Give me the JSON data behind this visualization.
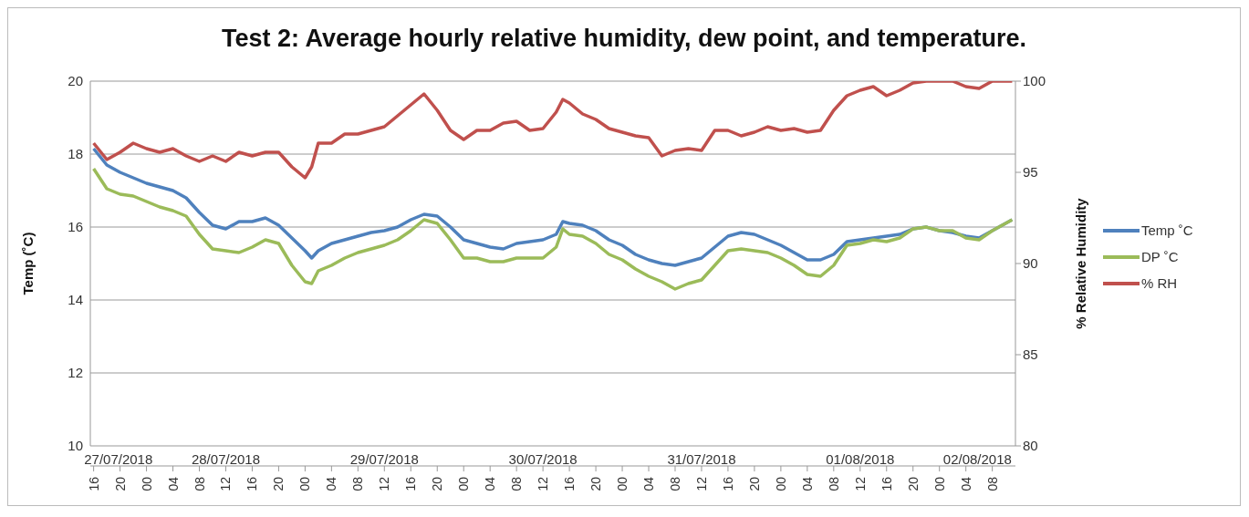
{
  "chart_data": {
    "type": "line",
    "title": "Test 2: Average hourly relative humidity, dew point, and temperature.",
    "ylabel": "Temp (˚C)",
    "y2label": "% Relative Humidity",
    "x": [
      "2018-07-27T16:00",
      "2018-07-27T18:00",
      "2018-07-27T20:00",
      "2018-07-27T22:00",
      "2018-07-28T00:00",
      "2018-07-28T02:00",
      "2018-07-28T04:00",
      "2018-07-28T06:00",
      "2018-07-28T08:00",
      "2018-07-28T10:00",
      "2018-07-28T12:00",
      "2018-07-28T14:00",
      "2018-07-28T16:00",
      "2018-07-28T18:00",
      "2018-07-28T20:00",
      "2018-07-28T22:00",
      "2018-07-29T00:00",
      "2018-07-29T01:00",
      "2018-07-29T02:00",
      "2018-07-29T04:00",
      "2018-07-29T06:00",
      "2018-07-29T08:00",
      "2018-07-29T10:00",
      "2018-07-29T12:00",
      "2018-07-29T14:00",
      "2018-07-29T16:00",
      "2018-07-29T18:00",
      "2018-07-29T20:00",
      "2018-07-29T22:00",
      "2018-07-30T00:00",
      "2018-07-30T02:00",
      "2018-07-30T04:00",
      "2018-07-30T06:00",
      "2018-07-30T08:00",
      "2018-07-30T10:00",
      "2018-07-30T12:00",
      "2018-07-30T14:00",
      "2018-07-30T15:00",
      "2018-07-30T16:00",
      "2018-07-30T18:00",
      "2018-07-30T20:00",
      "2018-07-30T22:00",
      "2018-07-31T00:00",
      "2018-07-31T02:00",
      "2018-07-31T04:00",
      "2018-07-31T06:00",
      "2018-07-31T08:00",
      "2018-07-31T10:00",
      "2018-07-31T12:00",
      "2018-07-31T14:00",
      "2018-07-31T16:00",
      "2018-07-31T18:00",
      "2018-07-31T20:00",
      "2018-07-31T22:00",
      "2018-08-01T00:00",
      "2018-08-01T02:00",
      "2018-08-01T04:00",
      "2018-08-01T06:00",
      "2018-08-01T08:00",
      "2018-08-01T10:00",
      "2018-08-01T12:00",
      "2018-08-01T14:00",
      "2018-08-01T16:00",
      "2018-08-01T18:00",
      "2018-08-01T20:00",
      "2018-08-01T22:00",
      "2018-08-02T00:00",
      "2018-08-02T02:00",
      "2018-08-02T04:00",
      "2018-08-02T06:00",
      "2018-08-02T08:00",
      "2018-08-02T11:00"
    ],
    "series": [
      {
        "name": "Temp ˚C",
        "color": "#4f81bd",
        "values": [
          18.15,
          17.7,
          17.5,
          17.35,
          17.2,
          17.1,
          17.0,
          16.8,
          16.4,
          16.05,
          15.95,
          16.15,
          16.15,
          16.25,
          16.05,
          15.7,
          15.35,
          15.15,
          15.35,
          15.55,
          15.65,
          15.75,
          15.85,
          15.9,
          16.0,
          16.2,
          16.35,
          16.3,
          16.0,
          15.65,
          15.55,
          15.45,
          15.4,
          15.55,
          15.6,
          15.65,
          15.8,
          16.15,
          16.1,
          16.05,
          15.9,
          15.65,
          15.5,
          15.25,
          15.1,
          15.0,
          14.95,
          15.05,
          15.15,
          15.45,
          15.75,
          15.85,
          15.8,
          15.65,
          15.5,
          15.3,
          15.1,
          15.1,
          15.25,
          15.6,
          15.65,
          15.7,
          15.75,
          15.8,
          15.95,
          16.0,
          15.9,
          15.85,
          15.75,
          15.7,
          15.9,
          16.2
        ]
      },
      {
        "name": "DP ˚C",
        "color": "#9bbb59",
        "values": [
          17.6,
          17.05,
          16.9,
          16.85,
          16.7,
          16.55,
          16.45,
          16.3,
          15.8,
          15.4,
          15.35,
          15.3,
          15.45,
          15.65,
          15.55,
          14.95,
          14.5,
          14.45,
          14.8,
          14.95,
          15.15,
          15.3,
          15.4,
          15.5,
          15.65,
          15.9,
          16.2,
          16.1,
          15.65,
          15.15,
          15.15,
          15.05,
          15.05,
          15.15,
          15.15,
          15.15,
          15.45,
          15.95,
          15.8,
          15.75,
          15.55,
          15.25,
          15.1,
          14.85,
          14.65,
          14.5,
          14.3,
          14.45,
          14.55,
          14.95,
          15.35,
          15.4,
          15.35,
          15.3,
          15.15,
          14.95,
          14.7,
          14.65,
          14.95,
          15.5,
          15.55,
          15.65,
          15.6,
          15.7,
          15.95,
          16.0,
          15.9,
          15.9,
          15.7,
          15.65,
          15.9,
          16.2
        ]
      },
      {
        "name": "% RH",
        "color": "#c0504d",
        "axis": "y2",
        "values": [
          96.6,
          95.7,
          96.1,
          96.6,
          96.3,
          96.1,
          96.3,
          95.9,
          95.6,
          95.9,
          95.6,
          96.1,
          95.9,
          96.1,
          96.1,
          95.3,
          94.7,
          95.3,
          96.6,
          96.6,
          97.1,
          97.1,
          97.3,
          97.5,
          98.1,
          98.7,
          99.3,
          98.4,
          97.3,
          96.8,
          97.3,
          97.3,
          97.7,
          97.8,
          97.3,
          97.4,
          98.3,
          99.0,
          98.8,
          98.2,
          97.9,
          97.4,
          97.2,
          97.0,
          96.9,
          95.9,
          96.2,
          96.3,
          96.2,
          97.3,
          97.3,
          97.0,
          97.2,
          97.5,
          97.3,
          97.4,
          97.2,
          97.3,
          98.4,
          99.2,
          99.5,
          99.7,
          99.2,
          99.5,
          99.9,
          100,
          100,
          100,
          99.7,
          99.6,
          100,
          100
        ]
      }
    ],
    "xlim": [
      "2018-07-27T15:30",
      "2018-08-02T11:30"
    ],
    "xticks": [
      {
        "value": "2018-07-27T16:00",
        "label": "16"
      },
      {
        "value": "2018-07-27T20:00",
        "label": "20"
      },
      {
        "value": "2018-07-28T00:00",
        "label": "00"
      },
      {
        "value": "2018-07-28T04:00",
        "label": "04"
      },
      {
        "value": "2018-07-28T08:00",
        "label": "08"
      },
      {
        "value": "2018-07-28T12:00",
        "label": "12"
      },
      {
        "value": "2018-07-28T16:00",
        "label": "16"
      },
      {
        "value": "2018-07-28T20:00",
        "label": "20"
      },
      {
        "value": "2018-07-29T00:00",
        "label": "00"
      },
      {
        "value": "2018-07-29T04:00",
        "label": "04"
      },
      {
        "value": "2018-07-29T08:00",
        "label": "08"
      },
      {
        "value": "2018-07-29T12:00",
        "label": "12"
      },
      {
        "value": "2018-07-29T16:00",
        "label": "16"
      },
      {
        "value": "2018-07-29T20:00",
        "label": "20"
      },
      {
        "value": "2018-07-30T00:00",
        "label": "00"
      },
      {
        "value": "2018-07-30T04:00",
        "label": "04"
      },
      {
        "value": "2018-07-30T08:00",
        "label": "08"
      },
      {
        "value": "2018-07-30T12:00",
        "label": "12"
      },
      {
        "value": "2018-07-30T16:00",
        "label": "16"
      },
      {
        "value": "2018-07-30T20:00",
        "label": "20"
      },
      {
        "value": "2018-07-31T00:00",
        "label": "00"
      },
      {
        "value": "2018-07-31T04:00",
        "label": "04"
      },
      {
        "value": "2018-07-31T08:00",
        "label": "08"
      },
      {
        "value": "2018-07-31T12:00",
        "label": "12"
      },
      {
        "value": "2018-07-31T16:00",
        "label": "16"
      },
      {
        "value": "2018-07-31T20:00",
        "label": "20"
      },
      {
        "value": "2018-08-01T00:00",
        "label": "00"
      },
      {
        "value": "2018-08-01T04:00",
        "label": "04"
      },
      {
        "value": "2018-08-01T08:00",
        "label": "08"
      },
      {
        "value": "2018-08-01T12:00",
        "label": "12"
      },
      {
        "value": "2018-08-01T16:00",
        "label": "16"
      },
      {
        "value": "2018-08-01T20:00",
        "label": "20"
      },
      {
        "value": "2018-08-02T00:00",
        "label": "00"
      },
      {
        "value": "2018-08-02T04:00",
        "label": "04"
      },
      {
        "value": "2018-08-02T08:00",
        "label": "08"
      }
    ],
    "ylim": [
      10,
      20
    ],
    "yticks": [
      10,
      12,
      14,
      16,
      18,
      20
    ],
    "y2lim": [
      80,
      100
    ],
    "y2ticks": [
      80,
      85,
      90,
      95,
      100
    ],
    "annotations": [
      "27/07/2018",
      "28/07/2018",
      "29/07/2018",
      "30/07/2018",
      "31/07/2018",
      "01/08/2018",
      "02/08/2018"
    ],
    "grid": "y",
    "legend": "right",
    "marker": "none",
    "line_style": "solid"
  }
}
